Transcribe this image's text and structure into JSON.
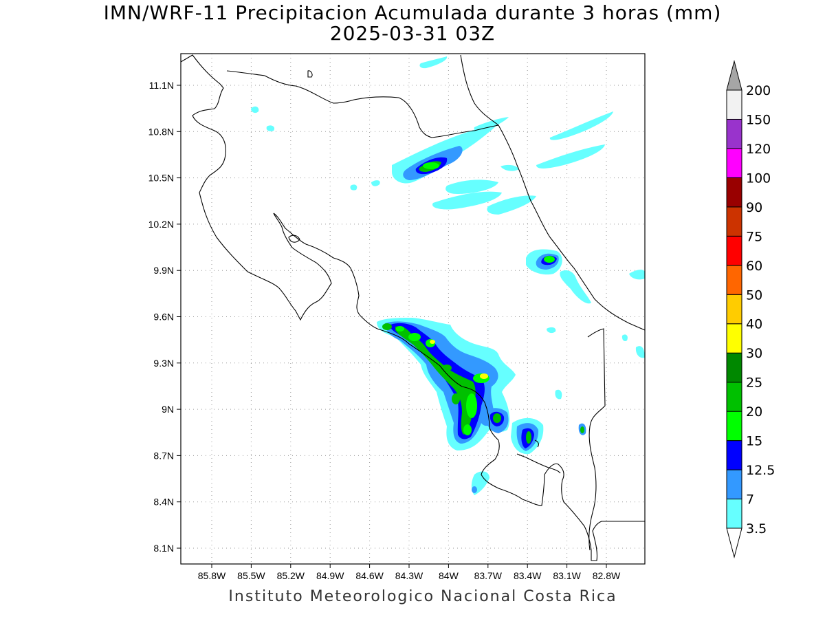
{
  "title": "IMN/WRF-11 Precipitacion Acumulada durante 3 horas (mm)",
  "subtitle": "2025-03-31 03Z",
  "footer": "Instituto Meteorologico Nacional Costa Rica",
  "map": {
    "lon_range": [
      -86.0,
      -82.5
    ],
    "lat_range": [
      8.0,
      11.3
    ],
    "lat_ticks": [
      {
        "value": 11.1,
        "label": "11.1N"
      },
      {
        "value": 10.8,
        "label": "10.8N"
      },
      {
        "value": 10.5,
        "label": "10.5N"
      },
      {
        "value": 10.2,
        "label": "10.2N"
      },
      {
        "value": 9.9,
        "label": "9.9N"
      },
      {
        "value": 9.6,
        "label": "9.6N"
      },
      {
        "value": 9.3,
        "label": "9.3N"
      },
      {
        "value": 9.0,
        "label": "9N"
      },
      {
        "value": 8.7,
        "label": "8.7N"
      },
      {
        "value": 8.4,
        "label": "8.4N"
      },
      {
        "value": 8.1,
        "label": "8.1N"
      }
    ],
    "lon_ticks": [
      {
        "value": -85.8,
        "label": "85.8W"
      },
      {
        "value": -85.5,
        "label": "85.5W"
      },
      {
        "value": -85.2,
        "label": "85.2W"
      },
      {
        "value": -84.9,
        "label": "84.9W"
      },
      {
        "value": -84.6,
        "label": "84.6W"
      },
      {
        "value": -84.3,
        "label": "84.3W"
      },
      {
        "value": -84.0,
        "label": "84W"
      },
      {
        "value": -83.7,
        "label": "83.7W"
      },
      {
        "value": -83.4,
        "label": "83.4W"
      },
      {
        "value": -83.1,
        "label": "83.1W"
      },
      {
        "value": -82.8,
        "label": "82.8W"
      }
    ],
    "grid": "dotted"
  },
  "colorbar": {
    "levels": [
      {
        "label": "3.5",
        "color": "#66ffff"
      },
      {
        "label": "7",
        "color": "#3399ff"
      },
      {
        "label": "12.5",
        "color": "#0000ff"
      },
      {
        "label": "15",
        "color": "#00ff00"
      },
      {
        "label": "20",
        "color": "#00c000"
      },
      {
        "label": "25",
        "color": "#008800"
      },
      {
        "label": "30",
        "color": "#ffff00"
      },
      {
        "label": "40",
        "color": "#ffcc00"
      },
      {
        "label": "50",
        "color": "#ff6600"
      },
      {
        "label": "60",
        "color": "#ff0000"
      },
      {
        "label": "75",
        "color": "#cc3300"
      },
      {
        "label": "90",
        "color": "#990000"
      },
      {
        "label": "100",
        "color": "#ff00ff"
      },
      {
        "label": "120",
        "color": "#9933cc"
      },
      {
        "label": "150",
        "color": "#f2f2f2"
      },
      {
        "label": "200",
        "color": "#a6a6a6"
      }
    ]
  }
}
